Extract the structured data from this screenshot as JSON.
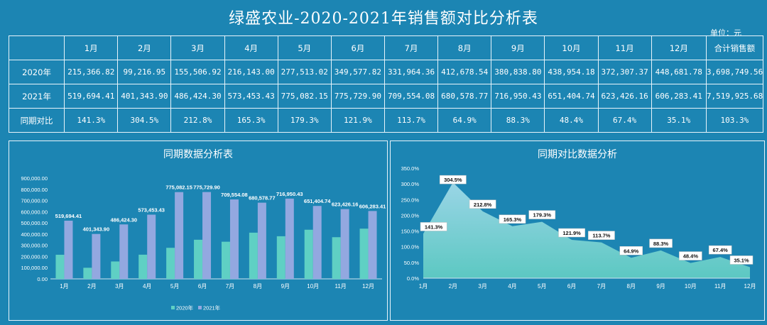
{
  "header": {
    "title": "绿盛农业-2020-2021年销售额对比分析表",
    "unit": "单位：元"
  },
  "table": {
    "headers": [
      "",
      "1月",
      "2月",
      "3月",
      "4月",
      "5月",
      "6月",
      "7月",
      "8月",
      "9月",
      "10月",
      "11月",
      "12月",
      "合计销售额"
    ],
    "rows": [
      {
        "label": "2020年",
        "cells": [
          "215,366.82",
          "99,216.95",
          "155,506.92",
          "216,143.00",
          "277,513.02",
          "349,577.82",
          "331,964.36",
          "412,678.54",
          "380,838.80",
          "438,954.18",
          "372,307.37",
          "448,681.78",
          "3,698,749.56"
        ]
      },
      {
        "label": "2021年",
        "cells": [
          "519,694.41",
          "401,343.90",
          "486,424.30",
          "573,453.43",
          "775,082.15",
          "775,729.90",
          "709,554.08",
          "680,578.77",
          "716,950.43",
          "651,404.74",
          "623,426.16",
          "606,283.41",
          "7,519,925.68"
        ]
      },
      {
        "label": "同期对比",
        "cells": [
          "141.3%",
          "304.5%",
          "212.8%",
          "165.3%",
          "179.3%",
          "121.9%",
          "113.7%",
          "64.9%",
          "88.3%",
          "48.4%",
          "67.4%",
          "35.1%",
          "103.3%"
        ]
      }
    ]
  },
  "colors": {
    "background": "#1c85b3",
    "series_2020": "#5fd0c4",
    "series_2021": "#93a8e0",
    "area_top": "#9ad5e6",
    "area_bottom": "#5cc8c2"
  },
  "chart_data": [
    {
      "type": "bar",
      "title": "同期数据分析表",
      "categories": [
        "1月",
        "2月",
        "3月",
        "4月",
        "5月",
        "6月",
        "7月",
        "8月",
        "9月",
        "10月",
        "11月",
        "12月"
      ],
      "series": [
        {
          "name": "2020年",
          "values": [
            215366.82,
            99216.95,
            155506.92,
            216143.0,
            277513.02,
            349577.82,
            331964.36,
            412678.54,
            380838.8,
            438954.18,
            372307.37,
            448681.78
          ]
        },
        {
          "name": "2021年",
          "values": [
            519694.41,
            401343.9,
            486424.3,
            573453.43,
            775082.15,
            775729.9,
            709554.08,
            680578.77,
            716950.43,
            651404.74,
            623426.16,
            606283.41
          ]
        }
      ],
      "data_labels": [
        "519,694.41",
        "401,343.90",
        "486,424.30",
        "573,453.43",
        "775,082.15",
        "775,729.90",
        "709,554.08",
        "680,578.77",
        "716,950.43",
        "651,404.74",
        "623,426.16",
        "606,283.41"
      ],
      "yticks": [
        "0.00",
        "100,000.00",
        "200,000.00",
        "300,000.00",
        "400,000.00",
        "500,000.00",
        "600,000.00",
        "700,000.00",
        "800,000.00",
        "900,000.00"
      ],
      "ylim": [
        0,
        900000
      ],
      "legend_position": "bottom",
      "grid": false
    },
    {
      "type": "area",
      "title": "同期对比数据分析",
      "categories": [
        "1月",
        "2月",
        "3月",
        "4月",
        "5月",
        "6月",
        "7月",
        "8月",
        "9月",
        "10月",
        "11月",
        "12月"
      ],
      "values": [
        141.3,
        304.5,
        212.8,
        165.3,
        179.3,
        121.9,
        113.7,
        64.9,
        88.3,
        48.4,
        67.4,
        35.1
      ],
      "data_labels": [
        "141.3%",
        "304.5%",
        "212.8%",
        "165.3%",
        "179.3%",
        "121.9%",
        "113.7%",
        "64.9%",
        "88.3%",
        "48.4%",
        "67.4%",
        "35.1%"
      ],
      "yticks": [
        "0.0%",
        "50.0%",
        "100.0%",
        "150.0%",
        "200.0%",
        "250.0%",
        "300.0%",
        "350.0%"
      ],
      "ylim": [
        0,
        350
      ],
      "grid": false
    }
  ]
}
